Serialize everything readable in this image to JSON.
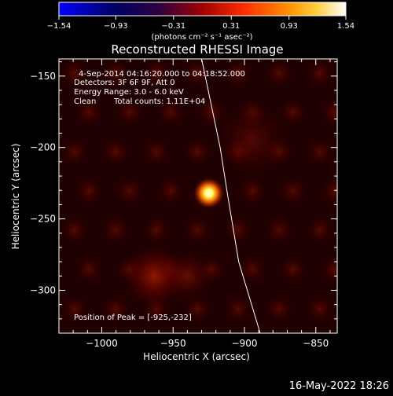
{
  "colorbar": {
    "ticks": [
      "-1.54",
      "-0.93",
      "-0.31",
      "0.31",
      "0.93",
      "1.54"
    ],
    "units_label": "(photons cm⁻² s⁻¹ asec⁻²)",
    "colors": [
      "#0000ff",
      "#000033",
      "#400050",
      "#a01000",
      "#ff4000",
      "#ffa000",
      "#ffff80",
      "#ffffff"
    ],
    "range": [
      -1.54,
      1.54
    ]
  },
  "image_info": {
    "time_range": "4-Sep-2014 04:16:20.000 to 04:18:52.000",
    "detectors": "Detectors: 3F 6F 9F, Att 0",
    "energy_range": "Energy Range: 3.0 - 6.0 keV",
    "method": "Clean",
    "total_counts": "Total counts: 1.11E+04",
    "peak_position": "Position of Peak = [-925,-232]"
  },
  "footer": {
    "timestamp": "16-May-2022 18:26"
  },
  "chart_data": {
    "type": "heatmap",
    "title": "Reconstructed RHESSI Image",
    "xlabel": "Heliocentric X (arcsec)",
    "ylabel": "Heliocentric Y (arcsec)",
    "xlim": [
      -1030,
      -835
    ],
    "ylim": [
      -330,
      -138
    ],
    "xticks": [
      -1000,
      -950,
      -900,
      -850
    ],
    "yticks": [
      -150,
      -200,
      -250,
      -300
    ],
    "xtick_labels": [
      "−1000",
      "−950",
      "−900",
      "−850"
    ],
    "ytick_labels": [
      "−150",
      "−200",
      "−250",
      "−300"
    ],
    "sources": [
      {
        "x": -925,
        "y": -232,
        "intensity": 1.54,
        "sigma": 5
      },
      {
        "x": -963,
        "y": -290,
        "intensity": 0.5,
        "sigma": 10
      },
      {
        "x": -940,
        "y": -290,
        "intensity": 0.3,
        "sigma": 8
      },
      {
        "x": -895,
        "y": -195,
        "intensity": 0.2,
        "sigma": 12
      }
    ],
    "limb": [
      {
        "x": -930,
        "y": -138
      },
      {
        "x": -917,
        "y": -200
      },
      {
        "x": -912,
        "y": -232
      },
      {
        "x": -904,
        "y": -280
      },
      {
        "x": -889,
        "y": -330
      }
    ]
  }
}
